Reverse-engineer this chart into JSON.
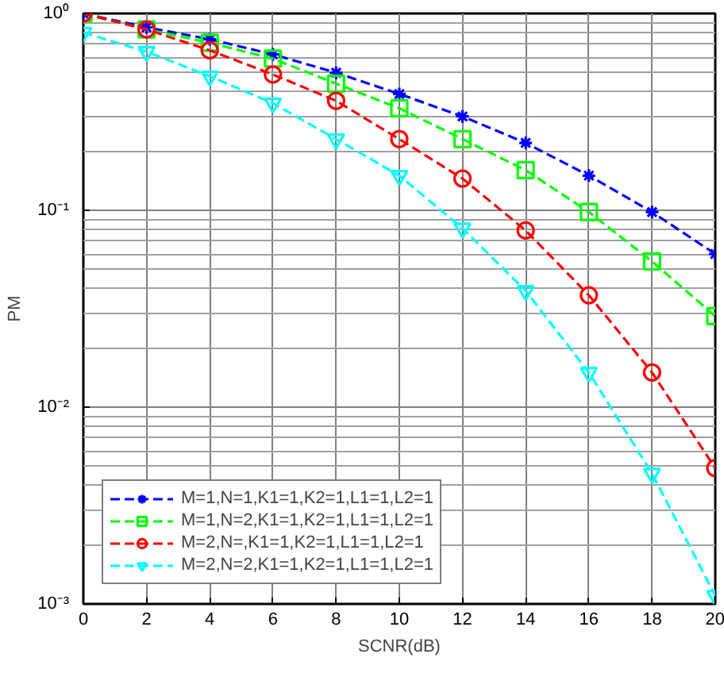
{
  "chart_data": {
    "type": "line",
    "xlabel": "SCNR(dB)",
    "ylabel": "PM",
    "log": "y",
    "grid": true,
    "legend": "bottom left",
    "line_style": "dashed",
    "x": [
      0,
      2,
      4,
      6,
      8,
      10,
      12,
      14,
      16,
      18,
      20
    ],
    "xlim": [
      0,
      20
    ],
    "xticks": [
      0,
      2,
      4,
      6,
      8,
      10,
      12,
      14,
      16,
      18,
      20
    ],
    "ylim": [
      0.001,
      1
    ],
    "yticks": [
      {
        "value": 0.001,
        "label": "10⁻³"
      },
      {
        "value": 0.01,
        "label": "10⁻²"
      },
      {
        "value": 0.1,
        "label": "10⁻¹"
      },
      {
        "value": 1,
        "label": "10⁰"
      }
    ],
    "series": [
      {
        "name": "M=1,N=1,K1=1,K2=1,L1=1,L2=1",
        "color": "#0000ff",
        "marker": "cross",
        "values": [
          1.0,
          0.85,
          0.74,
          0.62,
          0.5,
          0.39,
          0.3,
          0.22,
          0.15,
          0.098,
          0.06
        ]
      },
      {
        "name": "M=1,N=2,K1=1,K2=1,L1=1,L2=1",
        "color": "#00ff00",
        "marker": "square",
        "values": [
          1.0,
          0.83,
          0.71,
          0.59,
          0.44,
          0.33,
          0.23,
          0.16,
          0.098,
          0.055,
          0.029
        ]
      },
      {
        "name": "M=2,N=,K1=1,K2=1,L1=1,L2=1",
        "color": "#ff0000",
        "marker": "circle",
        "values": [
          1.0,
          0.83,
          0.65,
          0.49,
          0.36,
          0.23,
          0.145,
          0.079,
          0.037,
          0.015,
          0.0049
        ]
      },
      {
        "name": "M=2,N=2,K1=1,K2=1,L1=1,L2=1",
        "color": "#00ffff",
        "marker": "triangle",
        "values": [
          0.8,
          0.64,
          0.48,
          0.35,
          0.23,
          0.15,
          0.081,
          0.039,
          0.015,
          0.0046,
          0.0011
        ]
      }
    ]
  }
}
